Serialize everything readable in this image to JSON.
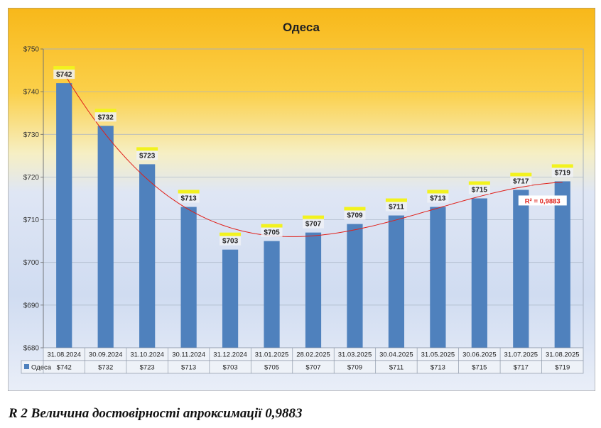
{
  "chart_data": {
    "type": "bar",
    "title": "Одеса",
    "series": [
      {
        "name": "Одеса",
        "values": [
          742,
          732,
          723,
          713,
          703,
          705,
          707,
          709,
          711,
          713,
          715,
          717,
          719
        ]
      }
    ],
    "categories": [
      "31.08.2024",
      "30.09.2024",
      "31.10.2024",
      "30.11.2024",
      "31.12.2024",
      "31.01.2025",
      "28.02.2025",
      "31.03.2025",
      "30.04.2025",
      "31.05.2025",
      "30.06.2025",
      "31.07.2025",
      "31.08.2025"
    ],
    "value_labels": [
      "$742",
      "$732",
      "$723",
      "$713",
      "$703",
      "$705",
      "$707",
      "$709",
      "$711",
      "$713",
      "$715",
      "$717",
      "$719"
    ],
    "ylim": [
      680,
      750
    ],
    "yticks": [
      680,
      690,
      700,
      710,
      720,
      730,
      740,
      750
    ],
    "ytick_labels": [
      "$680",
      "$690",
      "$700",
      "$710",
      "$720",
      "$730",
      "$740",
      "$750"
    ],
    "trendline": {
      "type": "polynomial",
      "r2_label": "R² = 0,9883"
    },
    "legend": "data table",
    "grid": true,
    "colors": {
      "bar": "#4f81bd",
      "trend": "#e0201a",
      "label_highlight": "#f2f21e",
      "r2_text": "#e0201a"
    }
  },
  "caption": "R 2 Величина достовірності апроксимації 0,9883"
}
